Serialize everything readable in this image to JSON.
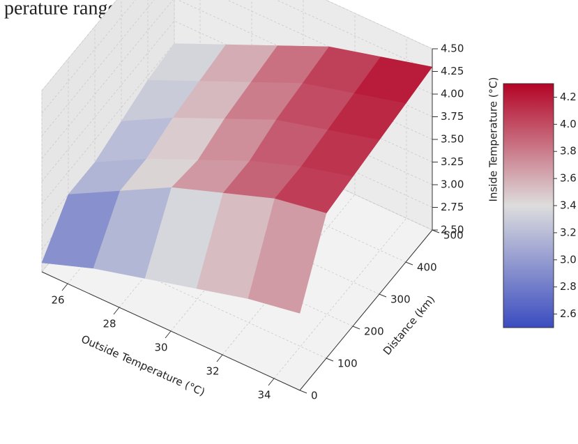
{
  "heading": "perature range",
  "chart_data": {
    "type": "surface3d",
    "x_label": "Outside Temperature (°C)",
    "y_label": "Distance (km)",
    "z_label": "Inside Temperature (°C)",
    "x": [
      25,
      27,
      29,
      31,
      33,
      35
    ],
    "y": [
      0,
      100,
      200,
      300,
      400,
      500
    ],
    "z": [
      [
        2.6,
        2.8,
        2.95,
        3.1,
        3.25,
        3.35
      ],
      [
        3.0,
        3.3,
        3.6,
        3.8,
        4.0,
        4.1
      ],
      [
        3.0,
        3.3,
        3.55,
        3.8,
        4.0,
        4.15
      ],
      [
        3.1,
        3.4,
        3.65,
        3.9,
        4.05,
        4.2
      ],
      [
        3.2,
        3.45,
        3.7,
        3.95,
        4.1,
        4.25
      ],
      [
        3.25,
        3.5,
        3.75,
        4.0,
        4.15,
        4.3
      ]
    ],
    "xlim": [
      25,
      35
    ],
    "ylim": [
      0,
      500
    ],
    "zlim": [
      2.5,
      4.5
    ],
    "xticks": [
      26,
      28,
      30,
      32,
      34
    ],
    "yticks": [
      0,
      100,
      200,
      300,
      400,
      500
    ],
    "zticks": [
      {
        "value": 2.5,
        "label": "2.50"
      },
      2.75,
      {
        "value": 3,
        "label": "3.00"
      },
      3.25,
      {
        "value": 3.5,
        "label": "3.50"
      },
      3.75,
      {
        "value": 4,
        "label": "4.00"
      },
      4.25,
      {
        "value": 4.5,
        "label": "4.50"
      }
    ],
    "colormap": [
      "#3b4cc0",
      "#dddddd",
      "#b40426"
    ],
    "clim": [
      2.5,
      4.3
    ],
    "cticks": [
      2.6,
      2.8,
      {
        "value": 3,
        "label": "3.0"
      },
      3.2,
      3.4,
      3.6,
      3.8,
      {
        "value": 4,
        "label": "4.0"
      },
      4.2
    ],
    "grid": true
  }
}
